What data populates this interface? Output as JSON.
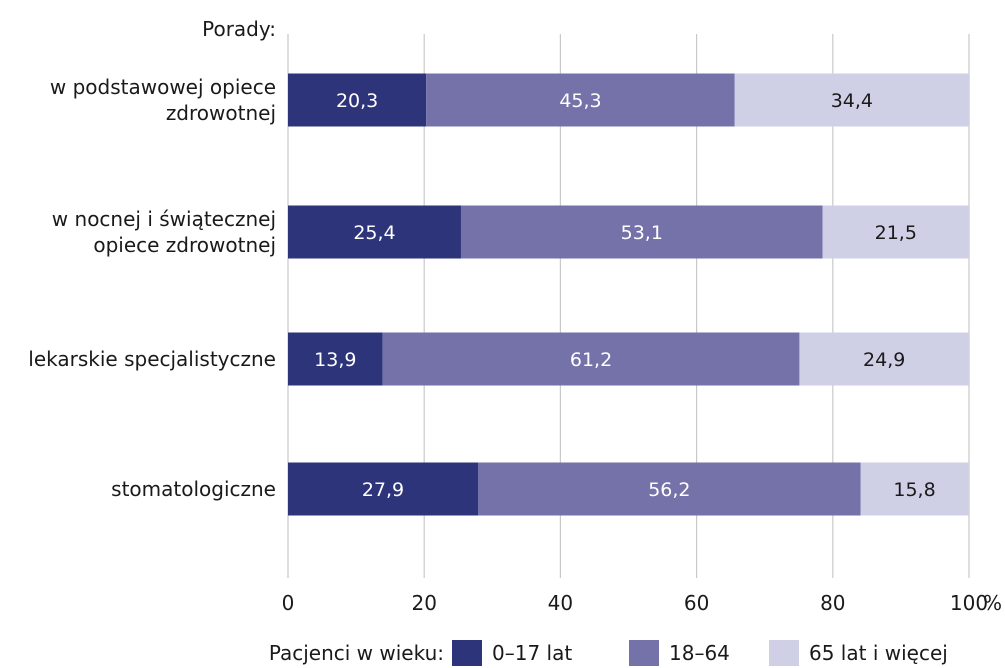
{
  "chart_data": {
    "type": "bar",
    "orientation": "horizontal",
    "stacked": true,
    "title": "Porady:",
    "categories": [
      [
        "w podstawowej opiece",
        "zdrowotnej"
      ],
      [
        "w nocnej i świątecznej",
        "opiece zdrowotnej"
      ],
      [
        "lekarskie specjalistyczne"
      ],
      [
        "stomatologiczne"
      ]
    ],
    "series": [
      {
        "name": "0–17 lat",
        "values": [
          20.3,
          25.4,
          13.9,
          27.9
        ],
        "labels": [
          "20,3",
          "25,4",
          "13,9",
          "27,9"
        ],
        "color": "#2e3479",
        "label_color": "#ffffff"
      },
      {
        "name": "18–64",
        "values": [
          45.3,
          53.1,
          61.2,
          56.2
        ],
        "labels": [
          "45,3",
          "53,1",
          "61,2",
          "56,2"
        ],
        "color": "#7472a8",
        "label_color": "#ffffff"
      },
      {
        "name": "65 lat i więcej",
        "values": [
          34.4,
          21.5,
          24.9,
          15.8
        ],
        "labels": [
          "34,4",
          "21,5",
          "24,9",
          "15,8"
        ],
        "color": "#cfcfe6",
        "label_color": "#1a1a1a"
      }
    ],
    "xlim": [
      0,
      100
    ],
    "xticks": [
      0,
      20,
      40,
      60,
      80,
      100
    ],
    "xunit": "%",
    "grid": true,
    "legend": {
      "title": "Pacjenci w wieku:",
      "position": "bottom"
    }
  }
}
